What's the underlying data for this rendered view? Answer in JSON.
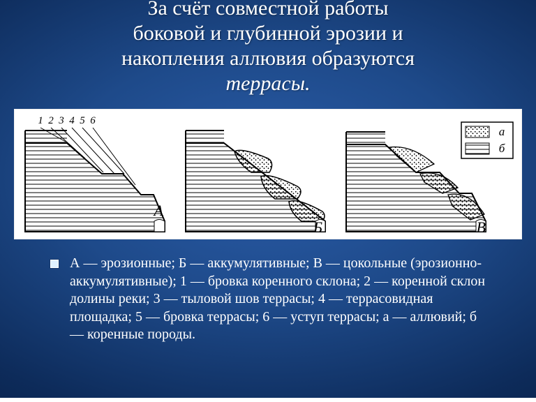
{
  "title": {
    "line1": "За счёт совместной работы",
    "line2": "боковой и глубинной эрозии и",
    "line3": "накопления аллювия образуются",
    "italic": "террасы."
  },
  "figure": {
    "background": "#ffffff",
    "stroke": "#000000",
    "hatch_gap": 6,
    "dot_gap": 6,
    "panels": {
      "A": {
        "letter": "А",
        "labels": [
          "1",
          "2",
          "3",
          "4",
          "5",
          "6"
        ]
      },
      "B": {
        "letter": "Б"
      },
      "C": {
        "letter": "В"
      }
    },
    "legend": {
      "a": "а",
      "b": "б"
    }
  },
  "caption": {
    "text": "А — эрозионные; Б — аккумулятивные; В — цокольные (эрозионно-аккумулятивные); 1 — бровка коренного склона; 2 — коренной склон долины реки; 3 — тыловой шов террасы; 4 — террасовидная площадка; 5 — бровка террасы; 6 — уступ террасы; а — аллювий; б — коренные породы."
  },
  "colors": {
    "title": "#ffffff",
    "caption": "#ffffff",
    "bullet_fill": "#dff1ff"
  }
}
